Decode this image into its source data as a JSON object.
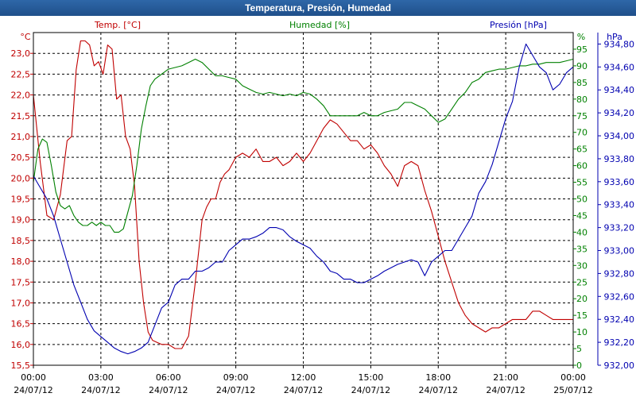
{
  "window": {
    "title": "Temperatura, Presión, Humedad"
  },
  "chart_data": {
    "type": "line",
    "title": "Temperatura, Presión, Humedad",
    "x_tick_labels": [
      [
        "00:00",
        "24/07/12"
      ],
      [
        "03:00",
        "24/07/12"
      ],
      [
        "06:00",
        "24/07/12"
      ],
      [
        "09:00",
        "24/07/12"
      ],
      [
        "12:00",
        "24/07/12"
      ],
      [
        "15:00",
        "24/07/12"
      ],
      [
        "18:00",
        "24/07/12"
      ],
      [
        "21:00",
        "24/07/12"
      ],
      [
        "00:00",
        "25/07/12"
      ]
    ],
    "xlim": [
      0,
      24
    ],
    "axes": {
      "temp": {
        "label": "Temp. [°C]",
        "unit": "°C",
        "ylim": [
          15.5,
          23.5
        ],
        "ticks": [
          "15,5",
          "16,0",
          "16,5",
          "17,0",
          "17,5",
          "18,0",
          "18,5",
          "19,0",
          "19,5",
          "20,0",
          "20,5",
          "21,0",
          "21,5",
          "22,0",
          "22,5",
          "23,0"
        ]
      },
      "humidity": {
        "label": "Humedad [%]",
        "unit": "%",
        "ylim": [
          0,
          100
        ],
        "ticks": [
          "0",
          "5",
          "10",
          "15",
          "20",
          "25",
          "30",
          "35",
          "40",
          "45",
          "50",
          "55",
          "60",
          "65",
          "70",
          "75",
          "80",
          "85",
          "90",
          "95"
        ]
      },
      "pressure": {
        "label": "Presión [hPa]",
        "unit": "hPa",
        "ylim": [
          932.0,
          934.9
        ],
        "ticks": [
          "932,00",
          "932,20",
          "932,40",
          "932,60",
          "932,80",
          "933,00",
          "933,20",
          "933,40",
          "933,60",
          "933,80",
          "934,00",
          "934,20",
          "934,40",
          "934,60",
          "934,80"
        ]
      }
    },
    "grid": true,
    "colors": {
      "temp": "#c00000",
      "humidity": "#008000",
      "pressure": "#0000b0",
      "title_bar": "#2a5f9e"
    },
    "series": [
      {
        "name": "Temp. [°C]",
        "axis": "temp",
        "x": [
          0,
          0.3,
          0.6,
          0.9,
          1.2,
          1.5,
          1.7,
          1.9,
          2.1,
          2.3,
          2.5,
          2.7,
          2.9,
          3.1,
          3.3,
          3.5,
          3.7,
          3.9,
          4.1,
          4.3,
          4.5,
          4.7,
          4.9,
          5.1,
          5.3,
          5.5,
          5.7,
          6.0,
          6.3,
          6.6,
          6.9,
          7.2,
          7.5,
          7.7,
          7.9,
          8.1,
          8.3,
          8.5,
          8.7,
          9.0,
          9.3,
          9.6,
          9.9,
          10.2,
          10.5,
          10.8,
          11.1,
          11.4,
          11.7,
          12.0,
          12.3,
          12.6,
          12.9,
          13.2,
          13.5,
          13.8,
          14.1,
          14.4,
          14.7,
          15.0,
          15.3,
          15.6,
          15.9,
          16.2,
          16.5,
          16.8,
          17.1,
          17.4,
          17.7,
          18.0,
          18.3,
          18.6,
          18.9,
          19.2,
          19.5,
          19.8,
          20.1,
          20.4,
          20.7,
          21.0,
          21.3,
          21.6,
          21.9,
          22.2,
          22.5,
          22.8,
          23.1,
          23.4,
          23.7,
          24.0
        ],
        "values": [
          22.0,
          20.4,
          19.1,
          19.0,
          19.6,
          20.9,
          21.0,
          22.6,
          23.3,
          23.3,
          23.2,
          22.7,
          22.8,
          22.5,
          23.2,
          23.1,
          21.9,
          22.0,
          21.0,
          20.7,
          19.8,
          18.0,
          17.0,
          16.3,
          16.1,
          16.05,
          16.0,
          16.0,
          15.9,
          15.9,
          16.2,
          17.5,
          19.0,
          19.3,
          19.5,
          19.5,
          19.9,
          20.1,
          20.2,
          20.5,
          20.6,
          20.5,
          20.7,
          20.4,
          20.4,
          20.5,
          20.3,
          20.4,
          20.6,
          20.4,
          20.6,
          20.9,
          21.2,
          21.4,
          21.3,
          21.1,
          20.9,
          20.9,
          20.7,
          20.8,
          20.6,
          20.3,
          20.1,
          19.8,
          20.3,
          20.4,
          20.3,
          19.7,
          19.2,
          18.6,
          18.0,
          17.5,
          17.0,
          16.7,
          16.5,
          16.4,
          16.3,
          16.4,
          16.4,
          16.5,
          16.6,
          16.6,
          16.6,
          16.8,
          16.8,
          16.7,
          16.6,
          16.6,
          16.6,
          16.6
        ]
      },
      {
        "name": "Humedad [%]",
        "axis": "humidity",
        "x": [
          0,
          0.2,
          0.4,
          0.6,
          0.8,
          1.0,
          1.2,
          1.4,
          1.6,
          1.8,
          2.0,
          2.2,
          2.4,
          2.6,
          2.8,
          3.0,
          3.2,
          3.4,
          3.6,
          3.8,
          4.0,
          4.2,
          4.4,
          4.6,
          4.8,
          5.0,
          5.2,
          5.4,
          5.6,
          5.8,
          6.0,
          6.3,
          6.6,
          6.9,
          7.2,
          7.5,
          7.8,
          8.1,
          8.4,
          8.7,
          9.0,
          9.3,
          9.6,
          9.9,
          10.2,
          10.5,
          10.8,
          11.1,
          11.4,
          11.7,
          12.0,
          12.3,
          12.6,
          12.9,
          13.2,
          13.5,
          13.8,
          14.1,
          14.4,
          14.7,
          15.0,
          15.3,
          15.6,
          15.9,
          16.2,
          16.5,
          16.8,
          17.1,
          17.4,
          17.7,
          18.0,
          18.3,
          18.6,
          18.9,
          19.2,
          19.5,
          19.8,
          20.1,
          20.4,
          20.7,
          21.0,
          21.3,
          21.6,
          21.9,
          22.2,
          22.5,
          22.8,
          23.1,
          23.4,
          23.7,
          24.0
        ],
        "values": [
          55,
          65,
          68,
          67,
          60,
          52,
          48,
          47,
          48,
          45,
          43,
          42,
          42,
          43,
          42,
          43,
          42,
          42,
          40,
          40,
          41,
          46,
          51,
          60,
          71,
          78,
          84,
          86,
          87,
          88,
          89,
          89.5,
          90,
          91,
          92,
          91,
          89,
          87,
          87,
          86.5,
          86,
          84,
          83,
          82,
          81.5,
          82,
          81.5,
          81,
          81.5,
          81,
          82,
          81.5,
          80,
          78,
          75,
          75,
          75,
          75,
          75,
          76,
          75,
          75,
          76,
          76.5,
          77,
          79,
          79,
          78,
          77,
          75,
          73,
          74,
          77,
          80,
          82,
          85,
          86,
          88,
          88.5,
          89,
          89,
          89.5,
          90,
          90,
          90.5,
          90.5,
          91,
          91,
          91,
          91.5,
          92
        ]
      },
      {
        "name": "Presión [hPa]",
        "axis": "pressure",
        "x": [
          0,
          0.3,
          0.6,
          0.9,
          1.2,
          1.5,
          1.8,
          2.1,
          2.4,
          2.7,
          3.0,
          3.3,
          3.6,
          3.9,
          4.2,
          4.5,
          4.8,
          5.1,
          5.4,
          5.7,
          6.0,
          6.3,
          6.6,
          6.9,
          7.2,
          7.5,
          7.8,
          8.1,
          8.4,
          8.7,
          9.0,
          9.3,
          9.6,
          9.9,
          10.2,
          10.5,
          10.8,
          11.1,
          11.4,
          11.7,
          12.0,
          12.3,
          12.6,
          12.9,
          13.2,
          13.5,
          13.8,
          14.1,
          14.4,
          14.7,
          15.0,
          15.3,
          15.6,
          15.9,
          16.2,
          16.5,
          16.8,
          17.1,
          17.4,
          17.7,
          18.0,
          18.3,
          18.6,
          18.9,
          19.2,
          19.5,
          19.8,
          20.1,
          20.4,
          20.7,
          21.0,
          21.3,
          21.6,
          21.9,
          22.2,
          22.5,
          22.8,
          23.1,
          23.4,
          23.7,
          24.0
        ],
        "values": [
          933.65,
          933.55,
          933.45,
          933.3,
          933.1,
          932.9,
          932.7,
          932.55,
          932.4,
          932.3,
          932.25,
          932.2,
          932.15,
          932.12,
          932.1,
          932.12,
          932.15,
          932.2,
          932.35,
          932.5,
          932.55,
          932.7,
          932.75,
          932.75,
          932.82,
          932.82,
          932.85,
          932.9,
          932.9,
          933.0,
          933.05,
          933.1,
          933.1,
          933.12,
          933.15,
          933.2,
          933.2,
          933.18,
          933.12,
          933.08,
          933.05,
          933.02,
          932.95,
          932.9,
          932.82,
          932.8,
          932.75,
          932.75,
          932.72,
          932.72,
          932.75,
          932.78,
          932.82,
          932.85,
          932.88,
          932.9,
          932.92,
          932.9,
          932.78,
          932.9,
          932.95,
          933.0,
          933.0,
          933.1,
          933.2,
          933.3,
          933.5,
          933.6,
          933.75,
          933.95,
          934.15,
          934.3,
          934.6,
          934.8,
          934.7,
          934.6,
          934.55,
          934.4,
          934.45,
          934.55,
          934.6
        ]
      }
    ]
  }
}
